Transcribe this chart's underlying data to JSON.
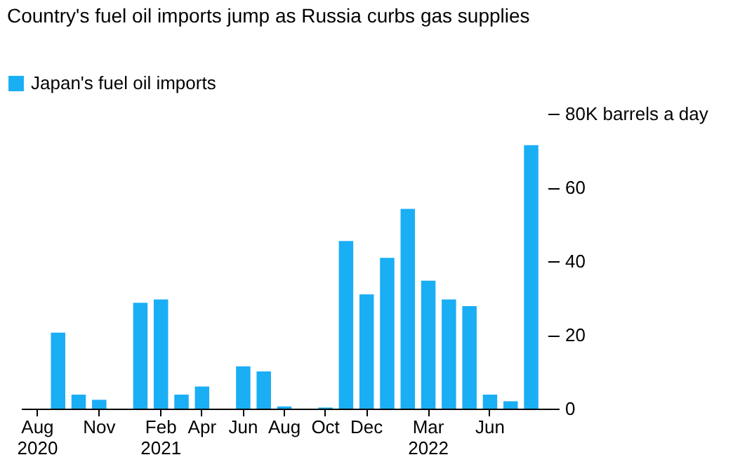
{
  "chart_data": {
    "type": "bar",
    "title": "Country's fuel oil imports jump as Russia curbs gas supplies",
    "categories": [
      "Aug 2020",
      null,
      null,
      "Nov",
      null,
      null,
      "Feb 2021",
      null,
      "Apr",
      null,
      "Jun",
      null,
      "Aug",
      null,
      "Oct",
      null,
      "Dec",
      null,
      null,
      "Mar 2022",
      null,
      null,
      "Jun",
      null,
      null
    ],
    "series": [
      {
        "name": "Japan's fuel oil imports",
        "color": "#1aaef5",
        "values": [
          0,
          20.6,
          3.8,
          2.4,
          0,
          28.7,
          29.6,
          3.8,
          6.0,
          0,
          11.5,
          10.1,
          0.6,
          0,
          0.3,
          45.5,
          31.0,
          40.9,
          54.2,
          34.7,
          29.6,
          27.8,
          3.8,
          2.0,
          71.5
        ]
      }
    ],
    "ylim": [
      0,
      80
    ],
    "yticks": [
      0,
      20,
      40,
      60,
      {
        "value": 80,
        "label": "80K barrels a day"
      }
    ],
    "legend": "top left",
    "grid": false
  }
}
